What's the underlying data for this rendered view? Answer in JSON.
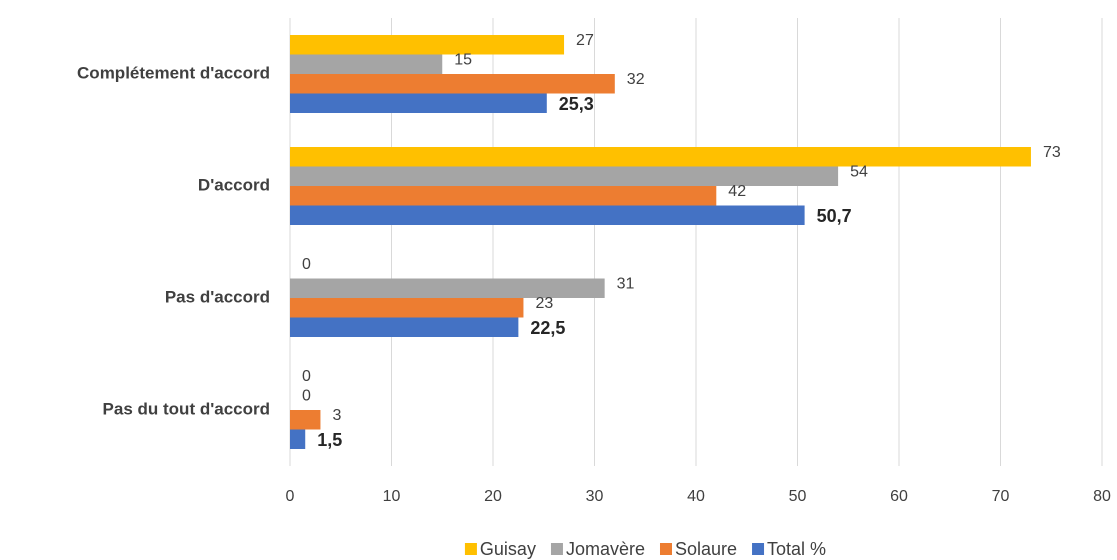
{
  "chart_data": {
    "type": "hbar",
    "categories": [
      "Complétement d'accord",
      "D'accord",
      "Pas d'accord",
      "Pas du tout d'accord"
    ],
    "series": [
      {
        "name": "Guisay",
        "color": "#FFC000",
        "values": [
          27,
          73,
          0,
          0
        ]
      },
      {
        "name": "Jomavère",
        "color": "#A5A5A5",
        "values": [
          15,
          54,
          31,
          0
        ]
      },
      {
        "name": "Solaure",
        "color": "#ED7D31",
        "values": [
          32,
          42,
          23,
          3
        ]
      },
      {
        "name": "Total %",
        "color": "#4472C4",
        "values": [
          25.3,
          50.7,
          22.5,
          1.5
        ],
        "value_labels": [
          "25,3",
          "50,7",
          "22,5",
          "1,5"
        ]
      }
    ],
    "xlim": [
      0,
      80
    ],
    "xticks": [
      0,
      10,
      20,
      30,
      40,
      50,
      60,
      70,
      80
    ],
    "grid": true,
    "legend": "bottom"
  }
}
